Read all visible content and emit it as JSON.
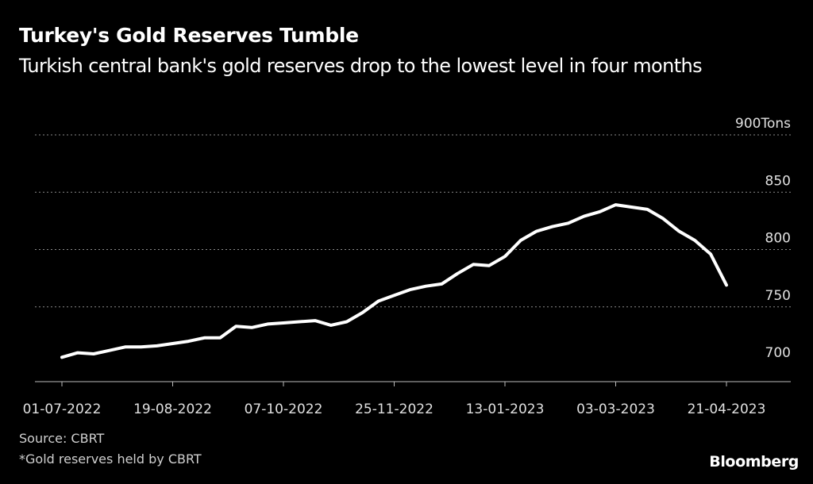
{
  "header": {
    "title": "Turkey's Gold Reserves Tumble",
    "subtitle": "Turkish central bank's gold reserves drop to the lowest level in four months"
  },
  "footer": {
    "source": "Source: CBRT",
    "note": "*Gold reserves held by CBRT",
    "logo": "Bloomberg"
  },
  "chart_data": {
    "type": "line",
    "unit_label": "Tons",
    "y_ticks": [
      700,
      750,
      800,
      850,
      900
    ],
    "y_tick_labels": [
      "700",
      "750",
      "800",
      "850",
      "900Tons"
    ],
    "ylim": [
      688,
      902
    ],
    "x_tick_labels": [
      "01-07-2022",
      "19-08-2022",
      "07-10-2022",
      "25-11-2022",
      "13-01-2023",
      "03-03-2023",
      "21-04-2023"
    ],
    "grid": true,
    "line_color": "#ffffff",
    "background": "#000000",
    "series": [
      {
        "x": [
          "2022-07-01",
          "2022-07-08",
          "2022-07-15",
          "2022-07-22",
          "2022-07-29",
          "2022-08-05",
          "2022-08-12",
          "2022-08-19",
          "2022-08-26",
          "2022-09-02",
          "2022-09-09",
          "2022-09-16",
          "2022-09-23",
          "2022-09-30",
          "2022-10-07",
          "2022-10-14",
          "2022-10-21",
          "2022-10-28",
          "2022-11-04",
          "2022-11-11",
          "2022-11-18",
          "2022-11-25",
          "2022-12-02",
          "2022-12-09",
          "2022-12-16",
          "2022-12-23",
          "2022-12-30",
          "2023-01-06",
          "2023-01-13",
          "2023-01-20",
          "2023-01-27",
          "2023-02-03",
          "2023-02-10",
          "2023-02-17",
          "2023-02-24",
          "2023-03-03",
          "2023-03-10",
          "2023-03-17",
          "2023-03-24",
          "2023-03-31",
          "2023-04-07",
          "2023-04-14",
          "2023-04-21"
        ],
        "values": [
          706,
          710,
          709,
          712,
          715,
          715,
          716,
          718,
          720,
          723,
          723,
          733,
          732,
          735,
          736,
          737,
          738,
          734,
          737,
          745,
          755,
          760,
          765,
          768,
          770,
          779,
          787,
          786,
          794,
          808,
          816,
          820,
          823,
          829,
          833,
          839,
          837,
          835,
          827,
          816,
          808,
          796,
          769
        ]
      }
    ]
  }
}
